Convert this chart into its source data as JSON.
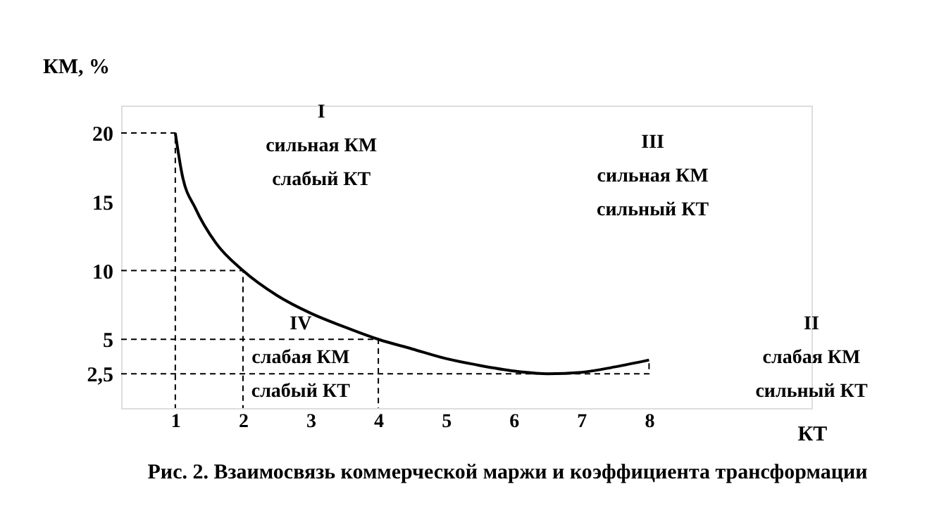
{
  "chart_data": {
    "type": "line",
    "title": "Рис. 2. Взаимосвязь коммерческой маржи и коэффициента трансформации",
    "xlabel": "КТ",
    "ylabel": "КМ, %",
    "xlim": [
      0.2,
      10.4
    ],
    "ylim": [
      0,
      22
    ],
    "xticks": [
      1,
      2,
      3,
      4,
      5,
      6,
      7,
      8
    ],
    "yticks": [
      {
        "value": 2.5,
        "label": "2,5"
      },
      5,
      10,
      15,
      20
    ],
    "grid": false,
    "marker": "none",
    "series": [
      {
        "color": "#000000",
        "line_style": "solid",
        "x": [
          1,
          1.1,
          1.3,
          1.6,
          2,
          2.5,
          3,
          3.5,
          4,
          4.5,
          5,
          5.5,
          6,
          6.5,
          7,
          7.5,
          8
        ],
        "values": [
          20,
          17,
          14.5,
          12,
          10,
          8.2,
          6.9,
          5.9,
          5,
          4.3,
          3.6,
          3.1,
          2.7,
          2.5,
          2.6,
          3,
          3.5
        ]
      },
      {
        "color": "#000000",
        "line_style": "dashed",
        "x": [
          0.2,
          1,
          1
        ],
        "values": [
          20,
          20,
          0
        ]
      },
      {
        "color": "#000000",
        "line_style": "dashed",
        "x": [
          0.2,
          2,
          2
        ],
        "values": [
          10,
          10,
          0
        ]
      },
      {
        "color": "#000000",
        "line_style": "dashed",
        "x": [
          0.2,
          4,
          4
        ],
        "values": [
          5,
          5,
          0
        ]
      },
      {
        "color": "#000000",
        "line_style": "dashed",
        "x": [
          0.2,
          8,
          8
        ],
        "values": [
          2.5,
          2.5,
          3.5
        ]
      }
    ],
    "annotations": [
      "I\nсильная КМ\nслабый КТ",
      "III\nсильная КМ\nсильный КТ",
      "IV\nслабая КМ\nслабый КТ",
      "II\nслабая КМ\nсильный КТ"
    ]
  }
}
